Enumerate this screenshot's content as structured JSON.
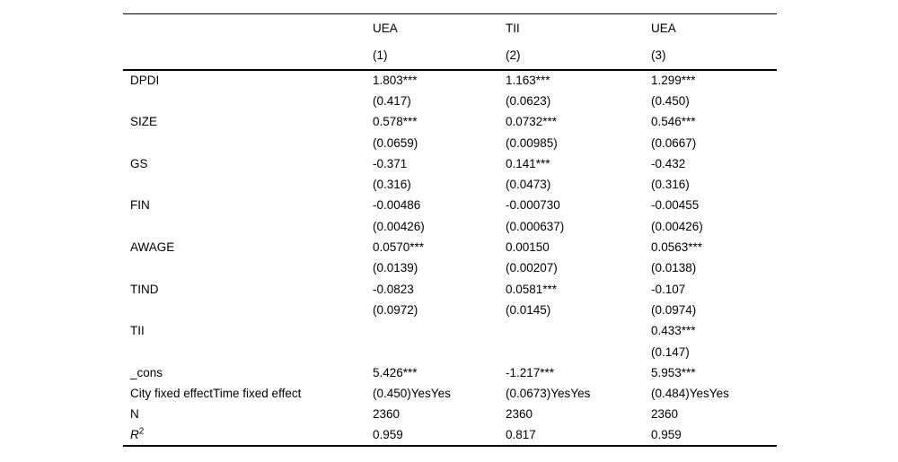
{
  "table": {
    "columns": [
      {
        "dep_var": "UEA",
        "model": "(1)"
      },
      {
        "dep_var": "TII",
        "model": "(2)"
      },
      {
        "dep_var": "UEA",
        "model": "(3)"
      }
    ],
    "rows": [
      {
        "label": "DPDI",
        "values": [
          "1.803***",
          "1.163***",
          "1.299***"
        ]
      },
      {
        "label": "",
        "values": [
          "(0.417)",
          "(0.0623)",
          "(0.450)"
        ]
      },
      {
        "label": "SIZE",
        "values": [
          "0.578***",
          "0.0732***",
          "0.546***"
        ]
      },
      {
        "label": "",
        "values": [
          "(0.0659)",
          "(0.00985)",
          "(0.0667)"
        ]
      },
      {
        "label": "GS",
        "values": [
          "-0.371",
          "0.141***",
          "-0.432"
        ]
      },
      {
        "label": "",
        "values": [
          "(0.316)",
          "(0.0473)",
          "(0.316)"
        ]
      },
      {
        "label": "FIN",
        "values": [
          "-0.00486",
          "-0.000730",
          "-0.00455"
        ]
      },
      {
        "label": "",
        "values": [
          "(0.00426)",
          "(0.000637)",
          "(0.00426)"
        ]
      },
      {
        "label": "AWAGE",
        "values": [
          "0.0570***",
          "0.00150",
          "0.0563***"
        ]
      },
      {
        "label": "",
        "values": [
          "(0.0139)",
          "(0.00207)",
          "(0.0138)"
        ]
      },
      {
        "label": "TIND",
        "values": [
          "-0.0823",
          "0.0581***",
          "-0.107"
        ]
      },
      {
        "label": "",
        "values": [
          "(0.0972)",
          "(0.0145)",
          "(0.0974)"
        ]
      },
      {
        "label": "TII",
        "values": [
          "",
          "",
          "0.433***"
        ]
      },
      {
        "label": "",
        "values": [
          "",
          "",
          "(0.147)"
        ]
      },
      {
        "label": "_cons",
        "values": [
          "5.426***",
          "-1.217***",
          "5.953***"
        ]
      },
      {
        "label": "City fixed effectTime fixed effect",
        "values": [
          "(0.450)YesYes",
          "(0.0673)YesYes",
          "(0.484)YesYes"
        ]
      },
      {
        "label": "N",
        "values": [
          "2360",
          "2360",
          "2360"
        ]
      },
      {
        "label": "R",
        "label_sup": "2",
        "values": [
          "0.959",
          "0.817",
          "0.959"
        ]
      }
    ]
  },
  "colors": {
    "text": "#000000",
    "background": "#ffffff",
    "rule": "#000000"
  }
}
